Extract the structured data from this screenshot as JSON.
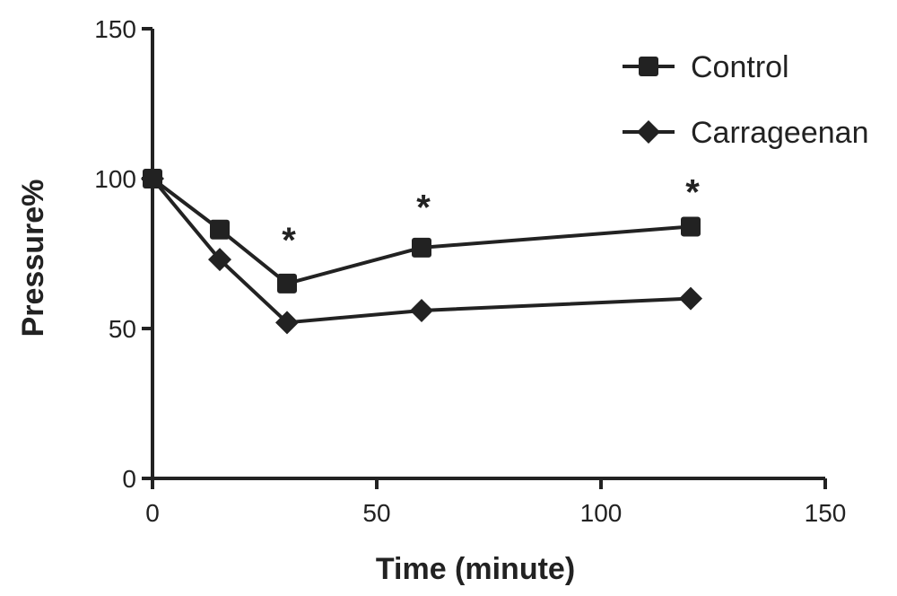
{
  "chart_data": {
    "type": "line",
    "title": "",
    "xlabel": "Time (minute)",
    "ylabel": "Pressure%",
    "xlim": [
      0,
      150
    ],
    "ylim": [
      0,
      150
    ],
    "x_ticks": [
      0,
      50,
      100,
      150
    ],
    "y_ticks": [
      0,
      50,
      100,
      150
    ],
    "x": [
      0,
      15,
      30,
      60,
      120
    ],
    "series": [
      {
        "name": "Control",
        "marker": "square",
        "values": [
          100,
          83,
          65,
          77,
          84
        ]
      },
      {
        "name": "Carrageenan",
        "marker": "diamond",
        "values": [
          100,
          73,
          52,
          56,
          60
        ]
      }
    ],
    "annotations": [
      {
        "text": "*",
        "x": 30,
        "y": 82
      },
      {
        "text": "*",
        "x": 60,
        "y": 93
      },
      {
        "text": "*",
        "x": 120,
        "y": 98
      }
    ],
    "legend_position": "top-right",
    "grid": false,
    "color": "#222222"
  }
}
